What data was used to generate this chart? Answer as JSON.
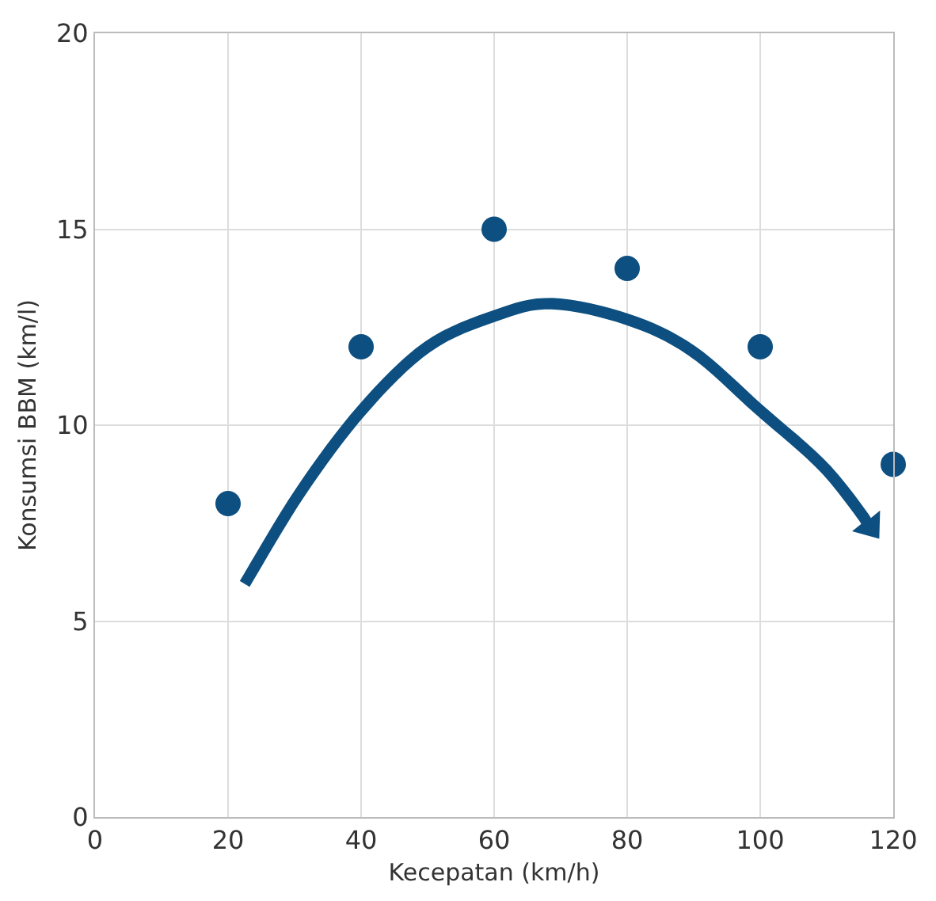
{
  "chart_data": {
    "type": "scatter",
    "xlabel": "Kecepatan (km/h)",
    "ylabel": "Konsumsi BBM (km/l)",
    "x": [
      20,
      40,
      60,
      80,
      100,
      120
    ],
    "series": [
      {
        "color": "#0d4f80",
        "values": [
          8,
          12,
          15,
          14,
          12,
          9
        ]
      }
    ],
    "xlim": [
      0,
      120
    ],
    "xticks": [
      0,
      20,
      40,
      60,
      80,
      100,
      120
    ],
    "ylim": [
      0,
      20
    ],
    "yticks": [
      0,
      5,
      10,
      15,
      20
    ],
    "grid": true
  }
}
